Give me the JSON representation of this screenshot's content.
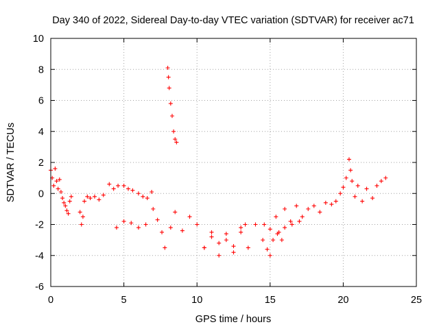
{
  "chart_data": {
    "type": "scatter",
    "title": "Day 340 of 2022, Sidereal Day-to-day VTEC variation (SDTVAR) for receiver ac71",
    "xlabel": "GPS time / hours",
    "ylabel": "SDTVAR / TECUs",
    "xlim": [
      0,
      25
    ],
    "ylim": [
      -6,
      10
    ],
    "xticks": [
      "0",
      "5",
      "10",
      "15",
      "20",
      "25"
    ],
    "yticks": [
      "-6",
      "-4",
      "-2",
      "0",
      "2",
      "4",
      "6",
      "8",
      "10"
    ],
    "grid": true,
    "marker": "+",
    "series": [
      {
        "name": "ac71",
        "color": "#ff0000",
        "x": [
          0.0,
          0.1,
          0.2,
          0.3,
          0.4,
          0.5,
          0.6,
          0.7,
          0.8,
          0.9,
          1.0,
          1.1,
          1.2,
          1.3,
          1.4,
          2.0,
          2.1,
          2.2,
          2.3,
          2.5,
          2.7,
          3.0,
          3.3,
          3.6,
          4.0,
          4.3,
          4.6,
          5.0,
          5.3,
          5.6,
          6.0,
          6.3,
          6.6,
          6.9,
          4.5,
          5.0,
          5.5,
          6.0,
          6.5,
          7.0,
          7.3,
          7.6,
          7.8,
          8.0,
          8.05,
          8.1,
          8.2,
          8.3,
          8.4,
          8.5,
          8.6,
          8.2,
          8.5,
          9.0,
          9.5,
          10.0,
          10.5,
          11.0,
          11.5,
          12.0,
          12.5,
          13.0,
          13.5,
          14.0,
          14.5,
          10.5,
          11.0,
          11.5,
          12.0,
          12.5,
          13.0,
          13.3,
          14.6,
          14.8,
          15.0,
          15.2,
          15.4,
          15.6,
          15.8,
          16.0,
          16.4,
          16.8,
          17.2,
          17.6,
          18.0,
          18.4,
          18.8,
          19.2,
          15.0,
          15.5,
          16.0,
          16.5,
          17.0,
          19.5,
          19.8,
          20.0,
          20.2,
          20.4,
          20.5,
          20.6,
          20.8,
          21.0,
          21.3,
          21.6,
          22.0,
          22.3,
          22.6,
          22.9
        ],
        "y": [
          1.5,
          1.0,
          0.5,
          1.6,
          0.8,
          0.3,
          0.9,
          0.1,
          -0.3,
          -0.6,
          -0.8,
          -1.1,
          -1.3,
          -0.5,
          -0.2,
          -1.2,
          -2.0,
          -1.5,
          -0.5,
          -0.2,
          -0.3,
          -0.2,
          -0.4,
          -0.1,
          0.6,
          0.3,
          0.5,
          0.5,
          0.3,
          0.2,
          0.0,
          -0.2,
          -0.3,
          0.1,
          -2.2,
          -1.8,
          -1.9,
          -2.2,
          -2.0,
          -1.0,
          -1.7,
          -2.5,
          -3.5,
          8.1,
          7.5,
          6.8,
          5.8,
          5.0,
          4.0,
          3.5,
          3.3,
          -2.2,
          -1.2,
          -2.4,
          -1.5,
          -2.0,
          -3.5,
          -2.5,
          -4.0,
          -3.0,
          -3.8,
          -2.5,
          -3.5,
          -2.0,
          -3.0,
          -3.5,
          -2.8,
          -3.2,
          -2.6,
          -3.4,
          -2.2,
          -2.0,
          -2.0,
          -3.6,
          -4.0,
          -3.0,
          -1.5,
          -2.5,
          -3.0,
          -1.0,
          -1.8,
          -0.8,
          -1.5,
          -1.0,
          -0.8,
          -1.2,
          -0.6,
          -0.7,
          -2.3,
          -2.6,
          -2.2,
          -2.0,
          -1.8,
          -0.5,
          0.0,
          0.4,
          1.0,
          2.2,
          1.5,
          0.8,
          -0.2,
          0.5,
          -0.5,
          0.3,
          -0.3,
          0.5,
          0.8,
          1.0
        ]
      }
    ]
  }
}
